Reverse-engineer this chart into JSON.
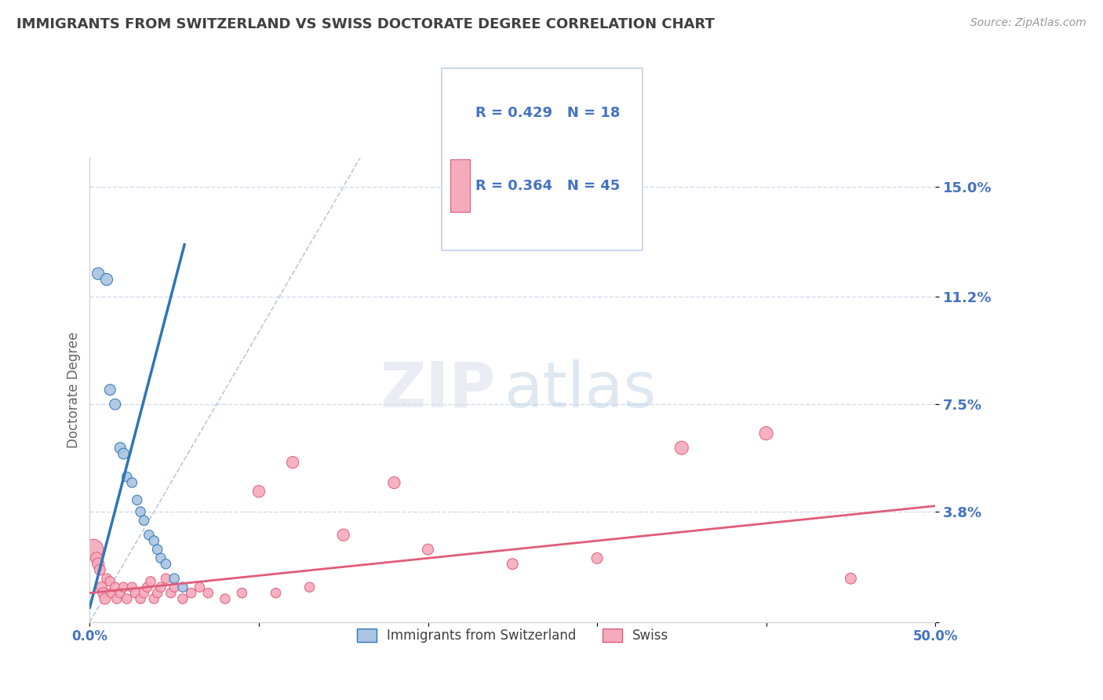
{
  "title": "IMMIGRANTS FROM SWITZERLAND VS SWISS DOCTORATE DEGREE CORRELATION CHART",
  "source": "Source: ZipAtlas.com",
  "ylabel": "Doctorate Degree",
  "xlim": [
    0.0,
    0.5
  ],
  "ylim": [
    0.0,
    0.16
  ],
  "yticks": [
    0.0,
    0.038,
    0.075,
    0.112,
    0.15
  ],
  "ytick_labels": [
    "",
    "3.8%",
    "7.5%",
    "11.2%",
    "15.0%"
  ],
  "xticks": [
    0.0,
    0.1,
    0.2,
    0.3,
    0.4,
    0.5
  ],
  "xtick_labels": [
    "0.0%",
    "",
    "",
    "",
    "",
    "50.0%"
  ],
  "legend_blue_r": "R = 0.429",
  "legend_blue_n": "N = 18",
  "legend_pink_r": "R = 0.364",
  "legend_pink_n": "N = 45",
  "legend_blue_label": "Immigrants from Switzerland",
  "legend_pink_label": "Swiss",
  "blue_color": "#aac4e2",
  "pink_color": "#f5aabd",
  "blue_line_color": "#2e75b6",
  "pink_line_color": "#e05c78",
  "text_color": "#4472c4",
  "title_color": "#404040",
  "blue_dots": [
    [
      0.005,
      0.12
    ],
    [
      0.01,
      0.118
    ],
    [
      0.012,
      0.08
    ],
    [
      0.015,
      0.075
    ],
    [
      0.018,
      0.06
    ],
    [
      0.02,
      0.058
    ],
    [
      0.022,
      0.05
    ],
    [
      0.025,
      0.048
    ],
    [
      0.028,
      0.042
    ],
    [
      0.03,
      0.038
    ],
    [
      0.032,
      0.035
    ],
    [
      0.035,
      0.03
    ],
    [
      0.038,
      0.028
    ],
    [
      0.04,
      0.025
    ],
    [
      0.042,
      0.022
    ],
    [
      0.045,
      0.02
    ],
    [
      0.05,
      0.015
    ],
    [
      0.055,
      0.012
    ]
  ],
  "pink_dots": [
    [
      0.002,
      0.025
    ],
    [
      0.004,
      0.022
    ],
    [
      0.005,
      0.02
    ],
    [
      0.006,
      0.018
    ],
    [
      0.007,
      0.012
    ],
    [
      0.008,
      0.01
    ],
    [
      0.009,
      0.008
    ],
    [
      0.01,
      0.015
    ],
    [
      0.012,
      0.014
    ],
    [
      0.013,
      0.01
    ],
    [
      0.015,
      0.012
    ],
    [
      0.016,
      0.008
    ],
    [
      0.018,
      0.01
    ],
    [
      0.02,
      0.012
    ],
    [
      0.022,
      0.008
    ],
    [
      0.025,
      0.012
    ],
    [
      0.027,
      0.01
    ],
    [
      0.03,
      0.008
    ],
    [
      0.032,
      0.01
    ],
    [
      0.034,
      0.012
    ],
    [
      0.036,
      0.014
    ],
    [
      0.038,
      0.008
    ],
    [
      0.04,
      0.01
    ],
    [
      0.042,
      0.012
    ],
    [
      0.045,
      0.015
    ],
    [
      0.048,
      0.01
    ],
    [
      0.05,
      0.012
    ],
    [
      0.055,
      0.008
    ],
    [
      0.06,
      0.01
    ],
    [
      0.065,
      0.012
    ],
    [
      0.07,
      0.01
    ],
    [
      0.08,
      0.008
    ],
    [
      0.09,
      0.01
    ],
    [
      0.1,
      0.045
    ],
    [
      0.11,
      0.01
    ],
    [
      0.12,
      0.055
    ],
    [
      0.13,
      0.012
    ],
    [
      0.15,
      0.03
    ],
    [
      0.18,
      0.048
    ],
    [
      0.2,
      0.025
    ],
    [
      0.25,
      0.02
    ],
    [
      0.3,
      0.022
    ],
    [
      0.35,
      0.06
    ],
    [
      0.4,
      0.065
    ],
    [
      0.45,
      0.015
    ]
  ],
  "blue_dot_sizes": [
    120,
    120,
    100,
    100,
    100,
    100,
    80,
    80,
    80,
    80,
    80,
    80,
    80,
    80,
    80,
    80,
    80,
    80
  ],
  "pink_dot_sizes": [
    350,
    120,
    120,
    100,
    100,
    100,
    100,
    80,
    80,
    80,
    80,
    80,
    80,
    80,
    80,
    80,
    80,
    80,
    80,
    80,
    80,
    80,
    80,
    80,
    80,
    80,
    80,
    80,
    80,
    80,
    80,
    80,
    80,
    120,
    80,
    120,
    80,
    120,
    120,
    100,
    100,
    100,
    150,
    150,
    100
  ],
  "watermark_zip": "ZIP",
  "watermark_atlas": "atlas",
  "background_color": "#ffffff",
  "grid_color": "#c8d4e8",
  "dashed_line_color": "#9ab4d0",
  "blue_trend_x": [
    0.0,
    0.056
  ],
  "blue_trend_y": [
    0.005,
    0.13
  ],
  "pink_trend_x": [
    0.0,
    0.5
  ],
  "pink_trend_y": [
    0.01,
    0.04
  ]
}
